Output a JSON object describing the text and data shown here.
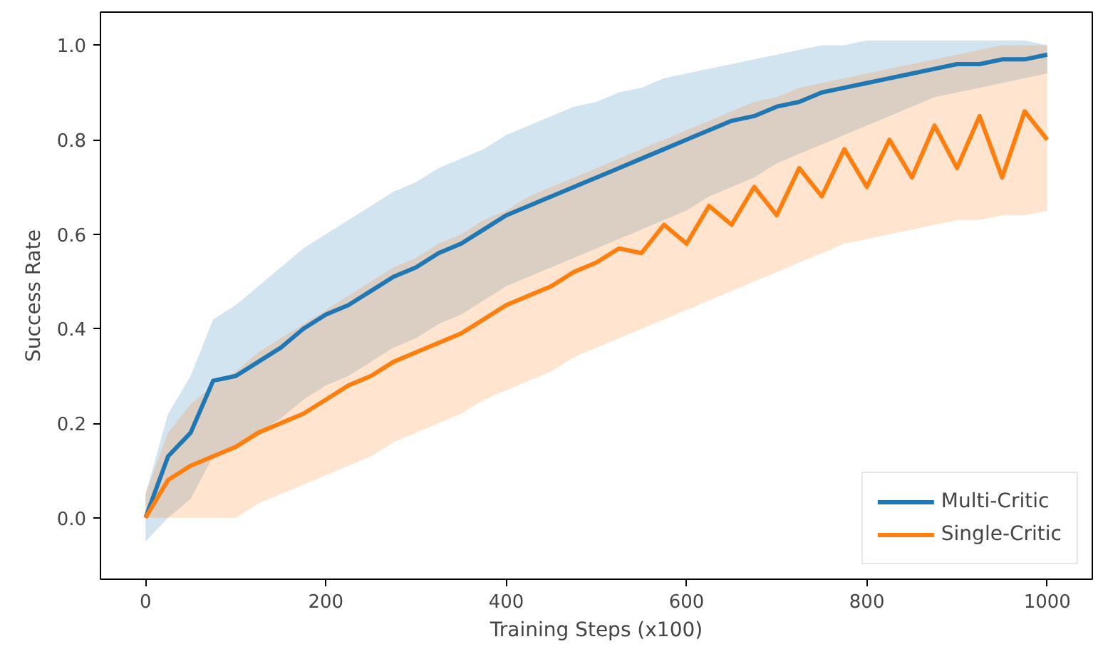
{
  "chart_data": {
    "type": "line",
    "xlabel": "Training Steps (x100)",
    "ylabel": "Success Rate",
    "x": [
      0,
      25,
      50,
      75,
      100,
      125,
      150,
      175,
      200,
      225,
      250,
      275,
      300,
      325,
      350,
      375,
      400,
      425,
      450,
      475,
      500,
      525,
      550,
      575,
      600,
      625,
      650,
      675,
      700,
      725,
      750,
      775,
      800,
      825,
      850,
      875,
      900,
      925,
      950,
      975,
      1000
    ],
    "series": [
      {
        "name": "Multi-Critic",
        "color": "#1f77b4",
        "values": [
          0,
          0.13,
          0.18,
          0.29,
          0.3,
          0.33,
          0.36,
          0.4,
          0.43,
          0.45,
          0.48,
          0.51,
          0.53,
          0.56,
          0.58,
          0.61,
          0.64,
          0.66,
          0.68,
          0.7,
          0.72,
          0.74,
          0.76,
          0.78,
          0.8,
          0.82,
          0.84,
          0.85,
          0.87,
          0.88,
          0.9,
          0.91,
          0.92,
          0.93,
          0.94,
          0.95,
          0.96,
          0.96,
          0.97,
          0.97,
          0.98
        ],
        "lower": [
          -0.05,
          0.0,
          0.04,
          0.13,
          0.15,
          0.18,
          0.21,
          0.25,
          0.28,
          0.3,
          0.33,
          0.36,
          0.38,
          0.41,
          0.43,
          0.46,
          0.49,
          0.51,
          0.53,
          0.55,
          0.57,
          0.59,
          0.61,
          0.63,
          0.65,
          0.68,
          0.7,
          0.72,
          0.75,
          0.77,
          0.79,
          0.81,
          0.83,
          0.85,
          0.87,
          0.89,
          0.9,
          0.91,
          0.92,
          0.93,
          0.94
        ],
        "upper": [
          0.05,
          0.22,
          0.3,
          0.42,
          0.45,
          0.49,
          0.53,
          0.57,
          0.6,
          0.63,
          0.66,
          0.69,
          0.71,
          0.74,
          0.76,
          0.78,
          0.81,
          0.83,
          0.85,
          0.87,
          0.88,
          0.9,
          0.91,
          0.93,
          0.94,
          0.95,
          0.96,
          0.97,
          0.98,
          0.99,
          1.0,
          1.0,
          1.01,
          1.01,
          1.01,
          1.01,
          1.01,
          1.01,
          1.01,
          1.01,
          1.0
        ]
      },
      {
        "name": "Single-Critic",
        "color": "#ff7f0e",
        "values": [
          0,
          0.08,
          0.11,
          0.13,
          0.15,
          0.18,
          0.2,
          0.22,
          0.25,
          0.28,
          0.3,
          0.33,
          0.35,
          0.37,
          0.39,
          0.42,
          0.45,
          0.47,
          0.49,
          0.52,
          0.54,
          0.57,
          0.56,
          0.62,
          0.58,
          0.66,
          0.62,
          0.7,
          0.64,
          0.74,
          0.68,
          0.78,
          0.7,
          0.8,
          0.72,
          0.83,
          0.74,
          0.85,
          0.72,
          0.86,
          0.8
        ],
        "lower": [
          0,
          0,
          0,
          0,
          0,
          0.03,
          0.05,
          0.07,
          0.09,
          0.11,
          0.13,
          0.16,
          0.18,
          0.2,
          0.22,
          0.25,
          0.27,
          0.29,
          0.31,
          0.34,
          0.36,
          0.38,
          0.4,
          0.42,
          0.44,
          0.46,
          0.48,
          0.5,
          0.52,
          0.54,
          0.56,
          0.58,
          0.59,
          0.6,
          0.61,
          0.62,
          0.63,
          0.63,
          0.64,
          0.64,
          0.65
        ],
        "upper": [
          0.05,
          0.18,
          0.24,
          0.28,
          0.31,
          0.35,
          0.38,
          0.41,
          0.44,
          0.47,
          0.5,
          0.53,
          0.55,
          0.58,
          0.6,
          0.63,
          0.65,
          0.68,
          0.7,
          0.72,
          0.74,
          0.76,
          0.78,
          0.8,
          0.82,
          0.84,
          0.86,
          0.88,
          0.89,
          0.91,
          0.92,
          0.93,
          0.94,
          0.95,
          0.96,
          0.97,
          0.98,
          0.99,
          1.0,
          1.0,
          1.0
        ]
      }
    ],
    "xlim": [
      -50,
      1050
    ],
    "ylim": [
      -0.13,
      1.07
    ],
    "xticks": [
      0,
      200,
      400,
      600,
      800,
      1000
    ],
    "yticks": [
      {
        "value": 0,
        "label": "0.0"
      },
      {
        "value": 0.2,
        "label": "0.2"
      },
      {
        "value": 0.4,
        "label": "0.4"
      },
      {
        "value": 0.6,
        "label": "0.6"
      },
      {
        "value": 0.8,
        "label": "0.8"
      },
      {
        "value": 1.0,
        "label": "1.0"
      }
    ],
    "grid": false,
    "legend": "bottom right"
  }
}
